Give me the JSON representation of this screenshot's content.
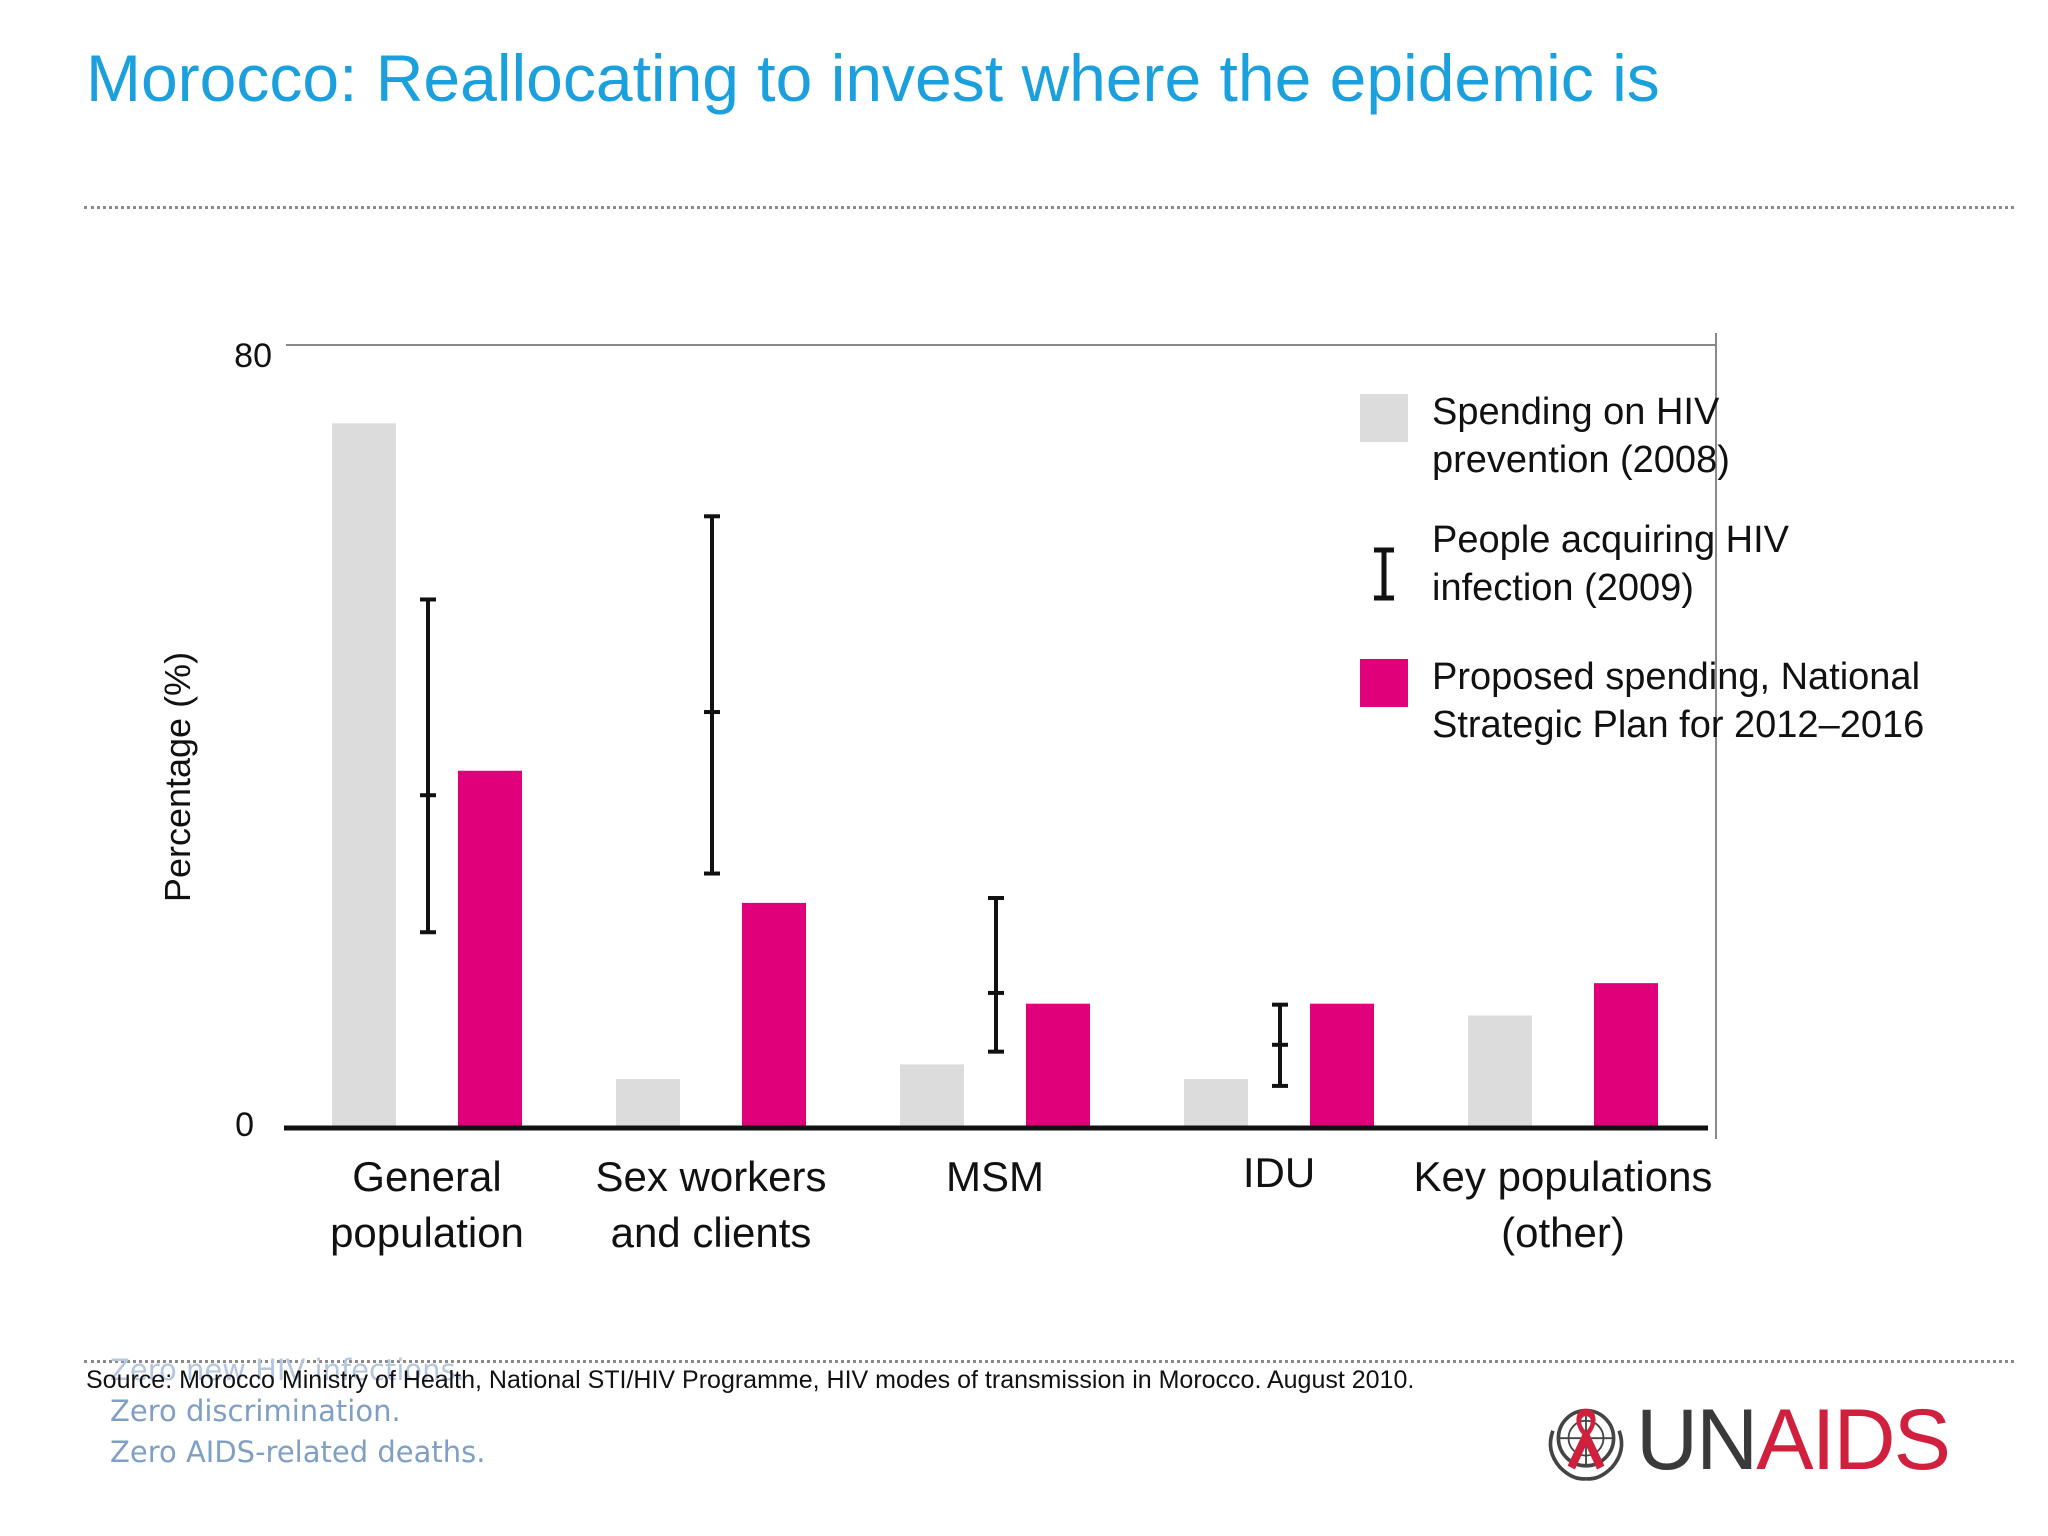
{
  "title": "Morocco: Reallocating to invest where the epidemic is",
  "colors": {
    "title": "#1aa0dc",
    "spending_2008": "#dcdcdd",
    "proposed_spending": "#e0007a",
    "error_bar": "#111111",
    "logo_un": "#3a3a3a",
    "logo_aids": "#d0203e",
    "tagline": "#7f9fc4"
  },
  "chart_data": {
    "type": "bar",
    "categories": [
      [
        "General",
        "population"
      ],
      [
        "Sex workers",
        "and clients"
      ],
      [
        "MSM"
      ],
      [
        "IDU"
      ],
      [
        "Key populations",
        "(other)"
      ]
    ],
    "series": [
      {
        "name": "Spending on HIV prevention (2008)",
        "values": [
          72,
          5,
          6.5,
          5,
          11.5
        ]
      },
      {
        "name": "Proposed spending, National Strategic Plan for 2012–2016",
        "values": [
          36.5,
          23,
          12.7,
          12.7,
          14.8
        ]
      }
    ],
    "infections_2009": {
      "name": "People acquiring HIV infection (2009)",
      "ranges": [
        {
          "low": 20,
          "mid": 34,
          "high": 54
        },
        {
          "low": 26,
          "mid": 42.5,
          "high": 62.5
        },
        {
          "low": 7.8,
          "mid": 13.8,
          "high": 23.5
        },
        {
          "low": 4.3,
          "mid": 8.5,
          "high": 12.6
        }
      ]
    },
    "ylabel": "Percentage (%)",
    "xlabel": "",
    "ylim": [
      0,
      80
    ],
    "yticks": [
      "0",
      "80"
    ],
    "legend": [
      {
        "key": "spending_2008",
        "lines": [
          "Spending on HIV",
          "prevention (2008)"
        ]
      },
      {
        "key": "infections_2009",
        "lines": [
          "People acquiring HIV",
          "infection (2009)"
        ]
      },
      {
        "key": "proposed_spending",
        "lines": [
          "Proposed spending, National",
          "Strategic Plan for 2012–2016"
        ]
      }
    ],
    "legend_position": "top-right",
    "grid": false
  },
  "source": "Source: Morocco Ministry of Health, National STI/HIV Programme, HIV modes of transmission in Morocco. August 2010.",
  "tagline": [
    "Zero new HIV infections.",
    "Zero discrimination.",
    "Zero AIDS-related deaths."
  ],
  "logo": {
    "un": "UN",
    "aids": "AIDS",
    "emblem": "un-emblem-with-red-ribbon-icon"
  }
}
